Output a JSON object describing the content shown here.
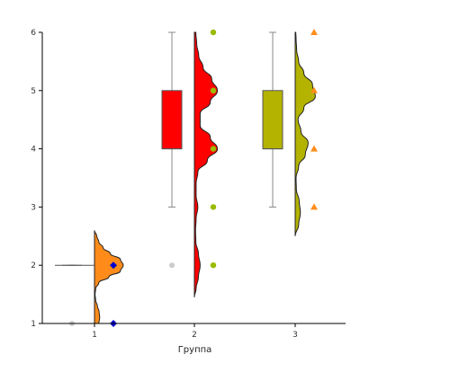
{
  "chart_data": {
    "type": "raincloud",
    "title": "",
    "xlabel": "Группа",
    "ylabel": "",
    "categories": [
      "1",
      "2",
      "3"
    ],
    "x_tick_labels": [
      "1",
      "2",
      "3"
    ],
    "ylim": [
      1,
      6
    ],
    "y_ticks": [
      1,
      2,
      3,
      4,
      5,
      6
    ],
    "y_tick_labels": [
      "1",
      "2",
      "3",
      "4",
      "5",
      "6"
    ],
    "grid": false,
    "legend": "none",
    "groups": [
      {
        "category": "1",
        "color": "#ff8c1a",
        "point_color": "#0000cc",
        "point_shape": "diamond",
        "box": {
          "q1": 2,
          "median": 2,
          "q3": 2,
          "whisker_low": 2,
          "whisker_high": 2
        },
        "outliers": [
          1
        ],
        "points": [
          1,
          2
        ],
        "density": {
          "y": [
            1.0,
            1.1,
            1.2,
            1.3,
            1.4,
            1.5,
            1.6,
            1.7,
            1.8,
            1.9,
            2.0,
            2.1,
            2.2,
            2.3,
            2.4,
            2.5,
            2.6
          ],
          "width": [
            0.15,
            0.18,
            0.16,
            0.1,
            0.04,
            0.02,
            0.04,
            0.15,
            0.5,
            0.9,
            1.0,
            0.9,
            0.55,
            0.3,
            0.15,
            0.08,
            0.0
          ]
        }
      },
      {
        "category": "2",
        "color": "#ff0000",
        "point_color": "#99bb00",
        "point_shape": "circle",
        "box": {
          "q1": 4,
          "median": 4,
          "q3": 5,
          "whisker_low": 3,
          "whisker_high": 6
        },
        "outliers": [
          2
        ],
        "points": [
          2,
          3,
          4,
          5,
          6
        ],
        "density": {
          "y": [
            1.45,
            1.6,
            1.8,
            2.0,
            2.2,
            2.4,
            2.6,
            2.8,
            3.0,
            3.2,
            3.4,
            3.6,
            3.8,
            4.0,
            4.2,
            4.4,
            4.6,
            4.8,
            5.0,
            5.2,
            5.4,
            5.6,
            5.8,
            6.0
          ],
          "width": [
            0.0,
            0.06,
            0.14,
            0.2,
            0.14,
            0.05,
            0.04,
            0.06,
            0.12,
            0.06,
            0.06,
            0.12,
            0.45,
            0.8,
            0.55,
            0.2,
            0.2,
            0.55,
            0.8,
            0.6,
            0.3,
            0.15,
            0.08,
            0.05
          ]
        }
      },
      {
        "category": "3",
        "color": "#b3b300",
        "point_color": "#ff8c1a",
        "point_shape": "triangle",
        "box": {
          "q1": 4,
          "median": 4,
          "q3": 5,
          "whisker_low": 3,
          "whisker_high": 6
        },
        "outliers": [],
        "points": [
          3,
          4,
          5,
          6
        ],
        "density": {
          "y": [
            2.5,
            2.7,
            2.9,
            3.1,
            3.3,
            3.5,
            3.7,
            3.9,
            4.1,
            4.3,
            4.5,
            4.7,
            4.9,
            5.1,
            5.3,
            5.5,
            5.7,
            5.9,
            6.0
          ],
          "width": [
            0.0,
            0.12,
            0.18,
            0.14,
            0.04,
            0.03,
            0.12,
            0.35,
            0.45,
            0.2,
            0.1,
            0.3,
            0.7,
            0.6,
            0.3,
            0.12,
            0.05,
            0.03,
            0.02
          ]
        }
      }
    ]
  }
}
